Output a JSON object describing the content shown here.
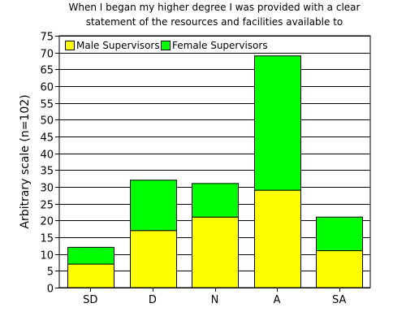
{
  "chart_data": {
    "type": "bar",
    "stacked": true,
    "title": "When I began my higher degree I was provided with a clear",
    "subtitle": "statement of the resources and facilities available to",
    "xlabel": "",
    "ylabel": "Arbitrary scale (n=102)",
    "ylim": [
      0,
      75
    ],
    "yticks": [
      0,
      5,
      10,
      15,
      20,
      25,
      30,
      35,
      40,
      45,
      50,
      55,
      60,
      65,
      70,
      75
    ],
    "grid": true,
    "legend_position": "top-left",
    "categories": [
      "SD",
      "D",
      "N",
      "A",
      "SA"
    ],
    "series": [
      {
        "name": "Male Supervisors",
        "color": "#ffff00",
        "values": [
          7,
          17,
          21,
          29,
          11
        ]
      },
      {
        "name": "Female Supervisors",
        "color": "#00ff00",
        "values": [
          5,
          15,
          10,
          40,
          10
        ]
      }
    ]
  }
}
